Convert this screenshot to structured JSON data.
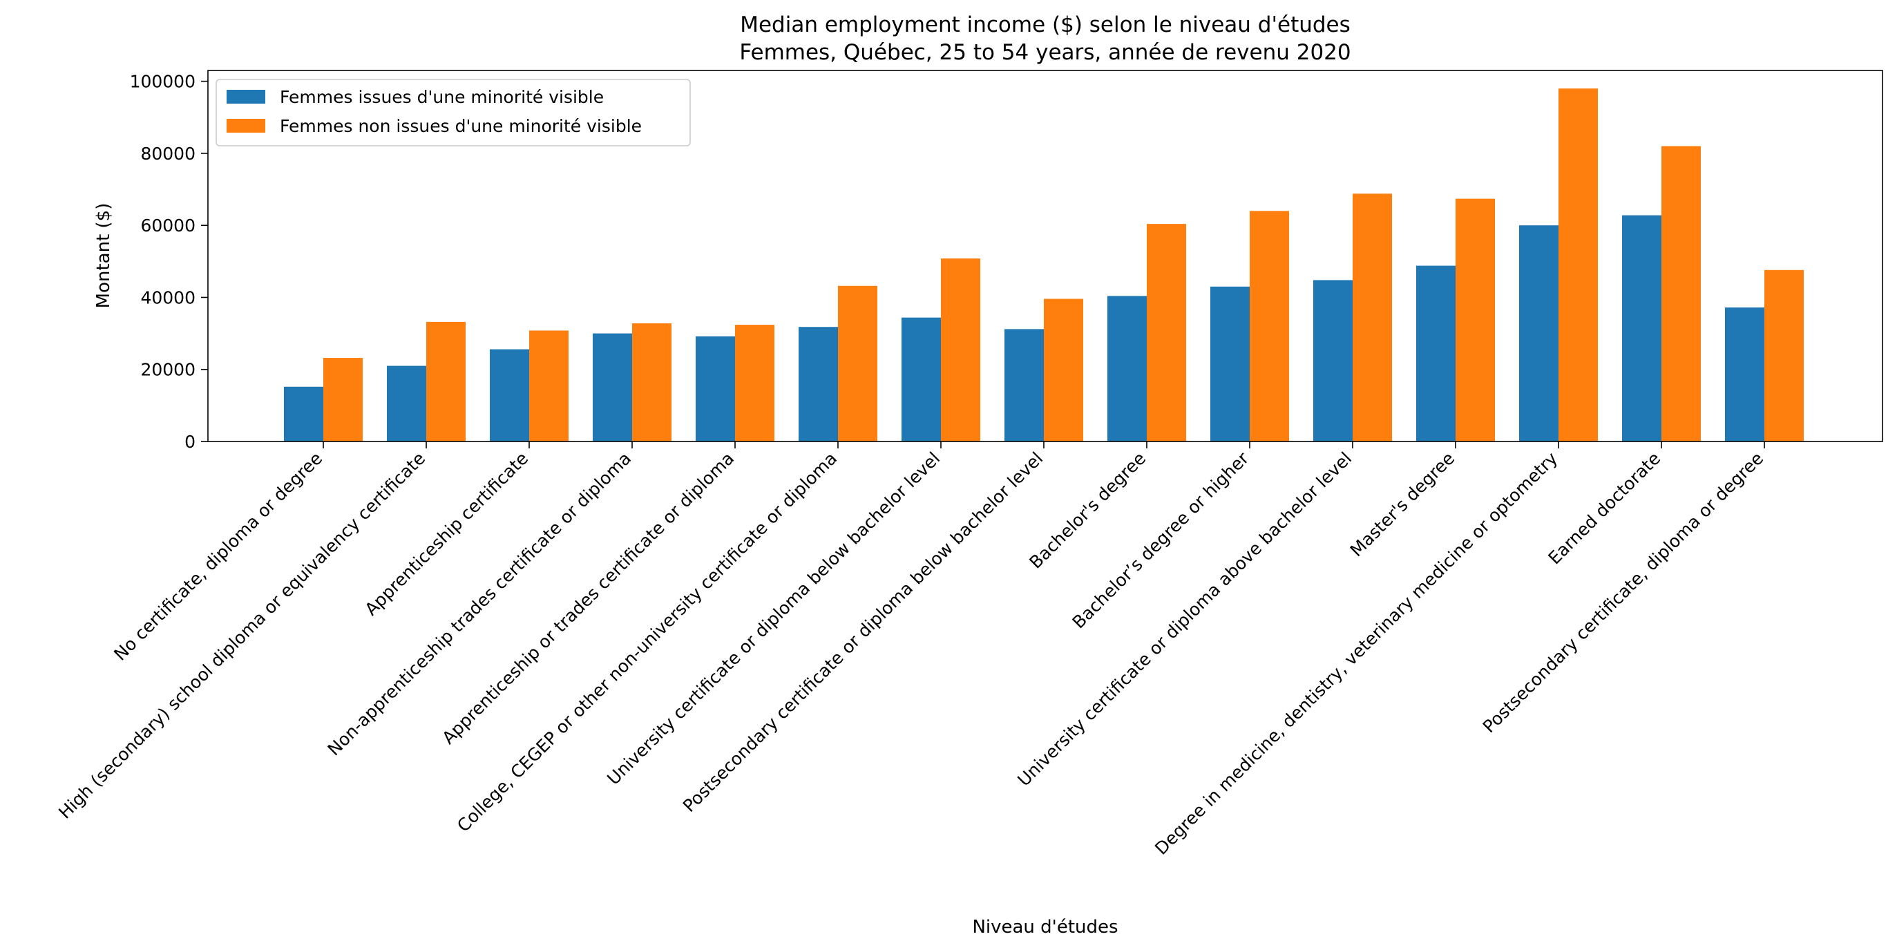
{
  "chart_data": {
    "type": "bar",
    "title": "Median employment income ($) selon le niveau d'études",
    "subtitle": "Femmes, Québec, 25 to 54 years, année de revenu 2020",
    "xlabel": "Niveau d'études",
    "ylabel": "Montant ($)",
    "ylim": [
      0,
      103000
    ],
    "yticks": [
      0,
      20000,
      40000,
      60000,
      80000,
      100000
    ],
    "ytick_labels": [
      "0",
      "20000",
      "40000",
      "60000",
      "80000",
      "100000"
    ],
    "grid": false,
    "legend_position": "top-left",
    "categories": [
      "No certificate, diploma or degree",
      "High (secondary) school diploma or equivalency certificate",
      "Apprenticeship certificate",
      "Non-apprenticeship trades certificate or diploma",
      "Apprenticeship or trades certificate or diploma",
      "College, CEGEP or other non-university certificate or diploma",
      "University certificate or diploma below bachelor level",
      "Postsecondary certificate or diploma below bachelor level",
      "Bachelor's degree",
      "Bachelor’s degree or higher",
      "University certificate or diploma above bachelor level",
      "Master's degree",
      "Degree in medicine, dentistry, veterinary medicine or optometry",
      "Earned doctorate",
      "Postsecondary certificate, diploma or degree"
    ],
    "series": [
      {
        "name": "Femmes issues d'une minorité visible",
        "color": "#1f77b4",
        "values": [
          15200,
          21000,
          25600,
          30000,
          29200,
          31800,
          34400,
          31200,
          40400,
          43000,
          44800,
          48800,
          60000,
          62800,
          37200
        ]
      },
      {
        "name": "Femmes non issues d'une minorité visible",
        "color": "#ff7f0e",
        "values": [
          23200,
          33200,
          30800,
          32800,
          32400,
          43200,
          50800,
          39600,
          60400,
          64000,
          68800,
          67400,
          98000,
          82000,
          47600
        ]
      }
    ]
  }
}
